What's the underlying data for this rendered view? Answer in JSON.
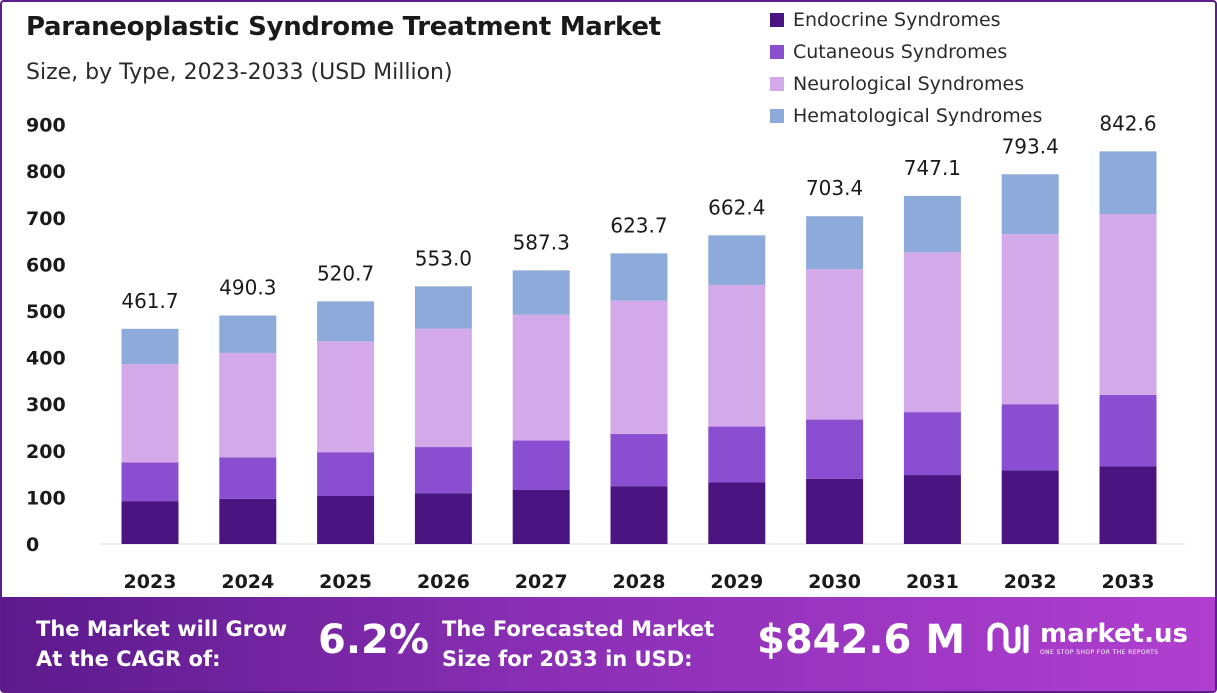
{
  "title": "Paraneoplastic Syndrome Treatment Market",
  "subtitle": "Size, by Type, 2023-2033 (USD Million)",
  "colors": {
    "endocrine": "#4a1580",
    "cutaneous": "#8a4ed0",
    "neurological": "#d3a9ea",
    "hematological": "#8eaadb",
    "frame": "#5b1e8a"
  },
  "chart_data": {
    "type": "bar",
    "stacked": true,
    "categories": [
      "2023",
      "2024",
      "2025",
      "2026",
      "2027",
      "2028",
      "2029",
      "2030",
      "2031",
      "2032",
      "2033"
    ],
    "series": [
      {
        "name": "Endocrine Syndromes",
        "color_key": "endocrine",
        "values": [
          92,
          97,
          103,
          109,
          116,
          124,
          132,
          140,
          148,
          158,
          167
        ]
      },
      {
        "name": "Cutaneous Syndromes",
        "color_key": "cutaneous",
        "values": [
          83,
          89,
          94,
          99,
          106,
          112,
          120,
          127,
          135,
          142,
          153
        ]
      },
      {
        "name": "Neurological Syndromes",
        "color_key": "neurological",
        "values": [
          211,
          224,
          238,
          254,
          270,
          286,
          304,
          323,
          343,
          365,
          388
        ]
      },
      {
        "name": "Hematological Syndromes",
        "color_key": "hematological",
        "values": [
          75.7,
          80.3,
          85.7,
          91.0,
          95.3,
          101.7,
          106.4,
          113.4,
          121.1,
          128.4,
          134.6
        ]
      }
    ],
    "totals": [
      "461.7",
      "490.3",
      "520.7",
      "553.0",
      "587.3",
      "623.7",
      "662.4",
      "703.4",
      "747.1",
      "793.4",
      "842.6"
    ],
    "y_ticks": [
      0,
      100,
      200,
      300,
      400,
      500,
      600,
      700,
      800,
      900
    ],
    "ylim": [
      0,
      900
    ],
    "legend_position": "top-right",
    "grid": false
  },
  "footer": {
    "cagr_line1": "The Market will Grow",
    "cagr_line2": "At the CAGR of:",
    "cagr_value": "6.2%",
    "forecast_line1": "The Forecasted Market",
    "forecast_line2": "Size for 2033 in USD:",
    "forecast_value": "$842.6 M",
    "brand_name": "market.us",
    "brand_tagline": "ONE STOP SHOP FOR THE REPORTS"
  }
}
